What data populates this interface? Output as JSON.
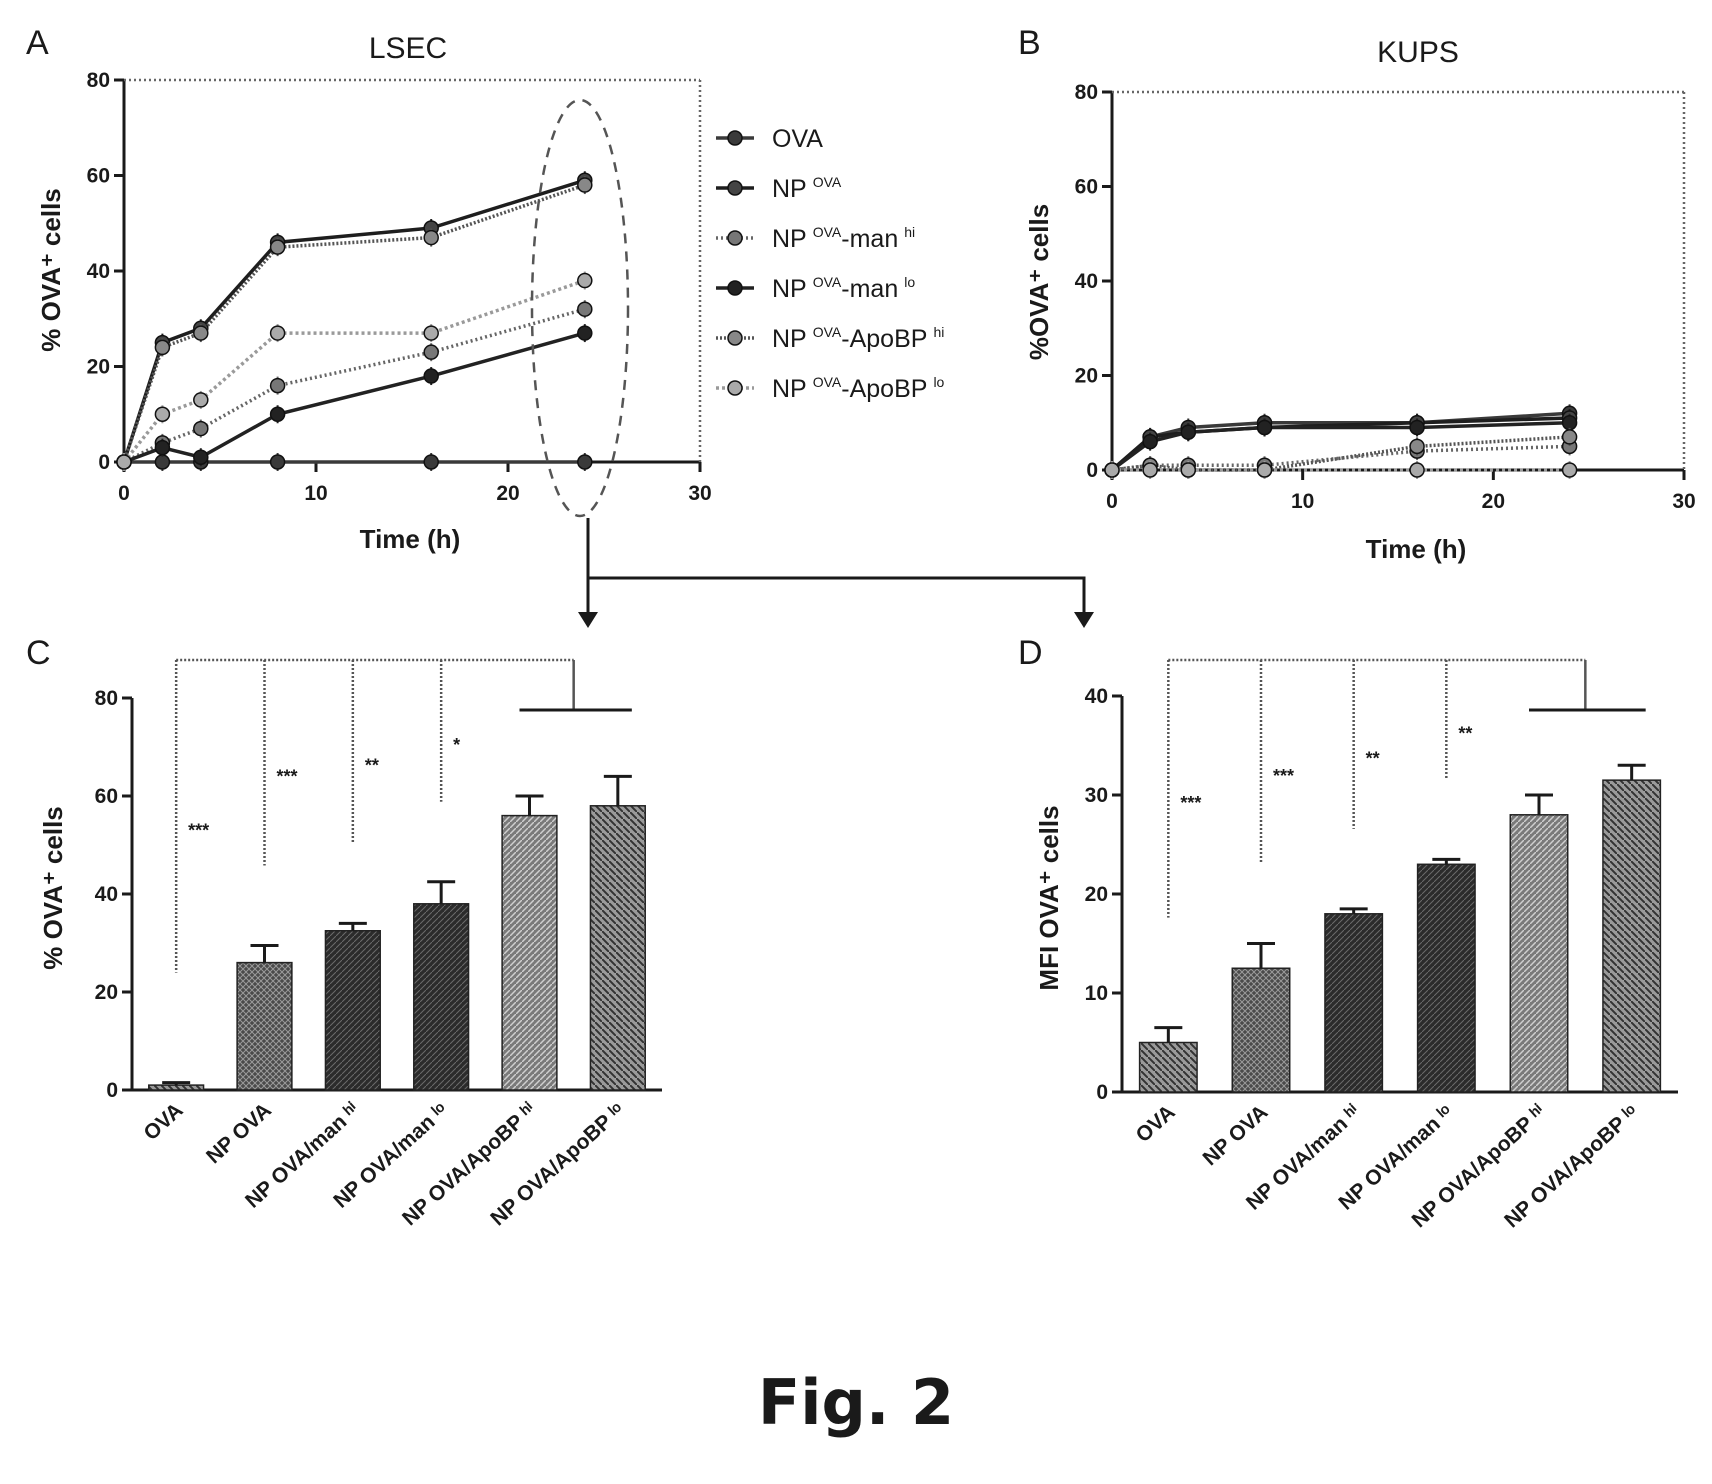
{
  "figure_caption": "Fig. 2",
  "colors": {
    "ink": "#1a1a1a",
    "dark": "#262626",
    "mid": "#555555",
    "light": "#8a8a8a"
  },
  "chart_data": [
    {
      "panel": "A",
      "type": "line",
      "title": "LSEC",
      "xlabel": "Time (h)",
      "ylabel": "% OVA⁺ cells",
      "xlim": [
        0,
        30
      ],
      "ylim": [
        0,
        80
      ],
      "xticks": [
        "0",
        "10",
        "20",
        "30"
      ],
      "yticks": [
        "0",
        "20",
        "40",
        "60",
        "80"
      ],
      "legend_position": "right",
      "series": [
        {
          "name": "OVA",
          "label_main": "OVA",
          "label_sup": "",
          "label_tail": "",
          "label_tail_sup": "",
          "x": [
            0,
            2,
            4,
            8,
            16,
            24
          ],
          "y": [
            0,
            0,
            0,
            0,
            0,
            0
          ]
        },
        {
          "name": "NP OVA",
          "label_main": "NP",
          "label_sup": "OVA",
          "label_tail": "",
          "label_tail_sup": "",
          "x": [
            0,
            2,
            4,
            8,
            16,
            24
          ],
          "y": [
            0,
            25,
            28,
            46,
            49,
            59
          ]
        },
        {
          "name": "NP OVA-man hi",
          "label_main": "NP",
          "label_sup": "OVA",
          "label_tail": "-man",
          "label_tail_sup": "hi",
          "x": [
            0,
            2,
            4,
            8,
            16,
            24
          ],
          "y": [
            0,
            4,
            7,
            16,
            23,
            32
          ]
        },
        {
          "name": "NP OVA-man lo",
          "label_main": "NP",
          "label_sup": "OVA",
          "label_tail": "-man",
          "label_tail_sup": "lo",
          "x": [
            0,
            2,
            4,
            8,
            16,
            24
          ],
          "y": [
            0,
            3,
            1,
            10,
            18,
            27
          ]
        },
        {
          "name": "NP OVA-ApoBP hi",
          "label_main": "NP",
          "label_sup": "OVA",
          "label_tail": "-ApoBP",
          "label_tail_sup": "hi",
          "x": [
            0,
            2,
            4,
            8,
            16,
            24
          ],
          "y": [
            0,
            24,
            27,
            45,
            47,
            58
          ]
        },
        {
          "name": "NP OVA-ApoBP lo",
          "label_main": "NP",
          "label_sup": "OVA",
          "label_tail": "-ApoBP",
          "label_tail_sup": "lo",
          "x": [
            0,
            2,
            4,
            8,
            16,
            24
          ],
          "y": [
            0,
            10,
            13,
            27,
            27,
            38
          ]
        }
      ]
    },
    {
      "panel": "B",
      "type": "line",
      "title": "KUPS",
      "xlabel": "Time (h)",
      "ylabel": "%OVA⁺ cells",
      "xlim": [
        0,
        30
      ],
      "ylim": [
        0,
        80
      ],
      "xticks": [
        "0",
        "10",
        "20",
        "30"
      ],
      "yticks": [
        "0",
        "20",
        "40",
        "60",
        "80"
      ],
      "series": [
        {
          "x": [
            0,
            2,
            4,
            8,
            16,
            24
          ],
          "y": [
            0,
            7,
            9,
            10,
            10,
            12
          ]
        },
        {
          "x": [
            0,
            2,
            4,
            8,
            16,
            24
          ],
          "y": [
            0,
            7,
            8,
            9,
            10,
            11
          ]
        },
        {
          "x": [
            0,
            2,
            4,
            8,
            16,
            24
          ],
          "y": [
            0,
            1,
            1,
            1,
            4,
            5
          ]
        },
        {
          "x": [
            0,
            2,
            4,
            8,
            16,
            24
          ],
          "y": [
            0,
            6,
            8,
            9,
            9,
            10
          ]
        },
        {
          "x": [
            0,
            2,
            4,
            8,
            16,
            24
          ],
          "y": [
            0,
            1,
            0,
            0,
            5,
            7
          ]
        },
        {
          "x": [
            0,
            2,
            4,
            8,
            16,
            24
          ],
          "y": [
            0,
            0,
            0,
            0,
            0,
            0
          ]
        }
      ]
    },
    {
      "panel": "C",
      "type": "bar",
      "ylabel": "% OVA⁺ cells",
      "ylim": [
        0,
        80
      ],
      "yticks": [
        "0",
        "20",
        "40",
        "60",
        "80"
      ],
      "categories": [
        "OVA",
        "NP OVA",
        "NP OVA/man ʰⁱ",
        "NP OVA/man ˡᵒ",
        "NP OVA/ApoBP ʰⁱ",
        "NP OVA/ApoBP ˡᵒ"
      ],
      "values": [
        1,
        26,
        32.5,
        38,
        56,
        58
      ],
      "errors": [
        0.5,
        3.5,
        1.5,
        4.5,
        4,
        6
      ],
      "significance": [
        "***",
        "***",
        "**",
        "*"
      ]
    },
    {
      "panel": "D",
      "type": "bar",
      "ylabel": "MFI OVA⁺ cells",
      "ylim": [
        0,
        40
      ],
      "yticks": [
        "0",
        "10",
        "20",
        "30",
        "40"
      ],
      "categories": [
        "OVA",
        "NP OVA",
        "NP OVA/man ʰⁱ",
        "NP OVA/man ˡᵒ",
        "NP OVA/ApoBP ʰⁱ",
        "NP OVA/ApoBP ˡᵒ"
      ],
      "values": [
        5,
        12.5,
        18,
        23,
        28,
        31.5
      ],
      "errors": [
        1.5,
        2.5,
        0.5,
        0.5,
        2,
        1.5
      ],
      "significance": [
        "***",
        "***",
        "**",
        "**"
      ]
    }
  ]
}
